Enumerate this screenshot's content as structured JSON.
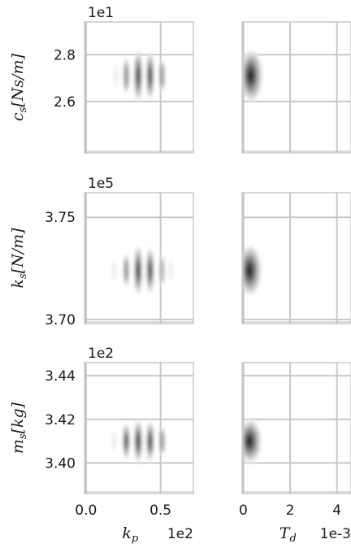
{
  "figure": {
    "type": "pairwise-density-grid",
    "description_panels": "3 rows x 2 columns of contour density plots"
  },
  "chart_data": [
    {
      "type": "heatmap",
      "row": 0,
      "col": 0,
      "x_param": "k_p",
      "y_param": "c_s",
      "ylabel_main": "c",
      "ylabel_sub": "s",
      "ylabel_unit": "[Ns/m]",
      "y_multiplier": "1e1",
      "xlim": [
        -0.01,
        0.72
      ],
      "ylim": [
        2.38,
        2.94
      ],
      "y_ticks": [
        2.6,
        2.8
      ],
      "y_tick_labels": [
        "2.6",
        "2.8"
      ],
      "x_grid": [
        0.0,
        0.5
      ],
      "center": [
        0.35,
        2.71
      ],
      "stripes_x": [
        0.2,
        0.27,
        0.35,
        0.43,
        0.51
      ],
      "stripe_weights": [
        0.15,
        0.55,
        1.0,
        0.9,
        0.45
      ],
      "spread_y": 0.05
    },
    {
      "type": "heatmap",
      "row": 0,
      "col": 1,
      "x_param": "T_d",
      "y_param": "c_s",
      "xlim": [
        -0.05,
        4.6
      ],
      "ylim": [
        2.38,
        2.94
      ],
      "x_grid": [
        0,
        2,
        4
      ],
      "y_ticks": [
        2.6,
        2.8
      ],
      "center": [
        0.35,
        2.71
      ],
      "spread_x": 0.35,
      "spread_y": 0.05
    },
    {
      "type": "heatmap",
      "row": 1,
      "col": 0,
      "x_param": "k_p",
      "y_param": "k_s",
      "ylabel_main": "k",
      "ylabel_sub": "s",
      "ylabel_unit": "[N/m]",
      "y_multiplier": "1e5",
      "xlim": [
        -0.01,
        0.72
      ],
      "ylim": [
        3.698,
        3.762
      ],
      "y_ticks": [
        3.7,
        3.75
      ],
      "y_tick_labels": [
        "3.70",
        "3.75"
      ],
      "x_grid": [
        0.0,
        0.5
      ],
      "center": [
        0.35,
        3.724
      ],
      "stripes_x": [
        0.19,
        0.27,
        0.35,
        0.43,
        0.51,
        0.57
      ],
      "stripe_weights": [
        0.1,
        0.5,
        1.0,
        0.9,
        0.4,
        0.08
      ],
      "spread_y": 0.0055
    },
    {
      "type": "heatmap",
      "row": 1,
      "col": 1,
      "x_param": "T_d",
      "y_param": "k_s",
      "xlim": [
        -0.05,
        4.6
      ],
      "ylim": [
        3.698,
        3.762
      ],
      "x_grid": [
        0,
        2,
        4
      ],
      "y_ticks": [
        3.7,
        3.75
      ],
      "center": [
        0.3,
        3.724
      ],
      "spread_x": 0.35,
      "spread_y": 0.0055
    },
    {
      "type": "heatmap",
      "row": 2,
      "col": 0,
      "x_param": "k_p",
      "y_param": "m_s",
      "ylabel_main": "m",
      "ylabel_sub": "s",
      "ylabel_unit": "[kg]",
      "y_multiplier": "1e2",
      "xlim": [
        -0.01,
        0.72
      ],
      "ylim": [
        3.386,
        3.446
      ],
      "y_ticks": [
        3.4,
        3.42,
        3.44
      ],
      "y_tick_labels": [
        "3.40",
        "3.42",
        "3.44"
      ],
      "x_grid": [
        0.0,
        0.5
      ],
      "xlabel_main": "k",
      "xlabel_sub": "p",
      "x_multiplier": "1e2",
      "x_ticks": [
        0.0,
        0.5
      ],
      "x_tick_labels": [
        "0.0",
        "0.5"
      ],
      "center": [
        0.35,
        3.41
      ],
      "stripes_x": [
        0.19,
        0.27,
        0.35,
        0.43,
        0.51
      ],
      "stripe_weights": [
        0.12,
        0.75,
        1.0,
        0.9,
        0.5
      ],
      "spread_y": 0.0045
    },
    {
      "type": "heatmap",
      "row": 2,
      "col": 1,
      "x_param": "T_d",
      "y_param": "m_s",
      "xlim": [
        -0.05,
        4.6
      ],
      "ylim": [
        3.386,
        3.446
      ],
      "x_grid": [
        0,
        2,
        4
      ],
      "y_ticks": [
        3.4,
        3.42,
        3.44
      ],
      "xlabel_main": "T",
      "xlabel_sub": "d",
      "x_multiplier": "1e-3",
      "x_ticks": [
        0,
        2,
        4
      ],
      "x_tick_labels": [
        "0",
        "2",
        "4"
      ],
      "center": [
        0.3,
        3.41
      ],
      "spread_x": 0.35,
      "spread_y": 0.0045
    }
  ]
}
